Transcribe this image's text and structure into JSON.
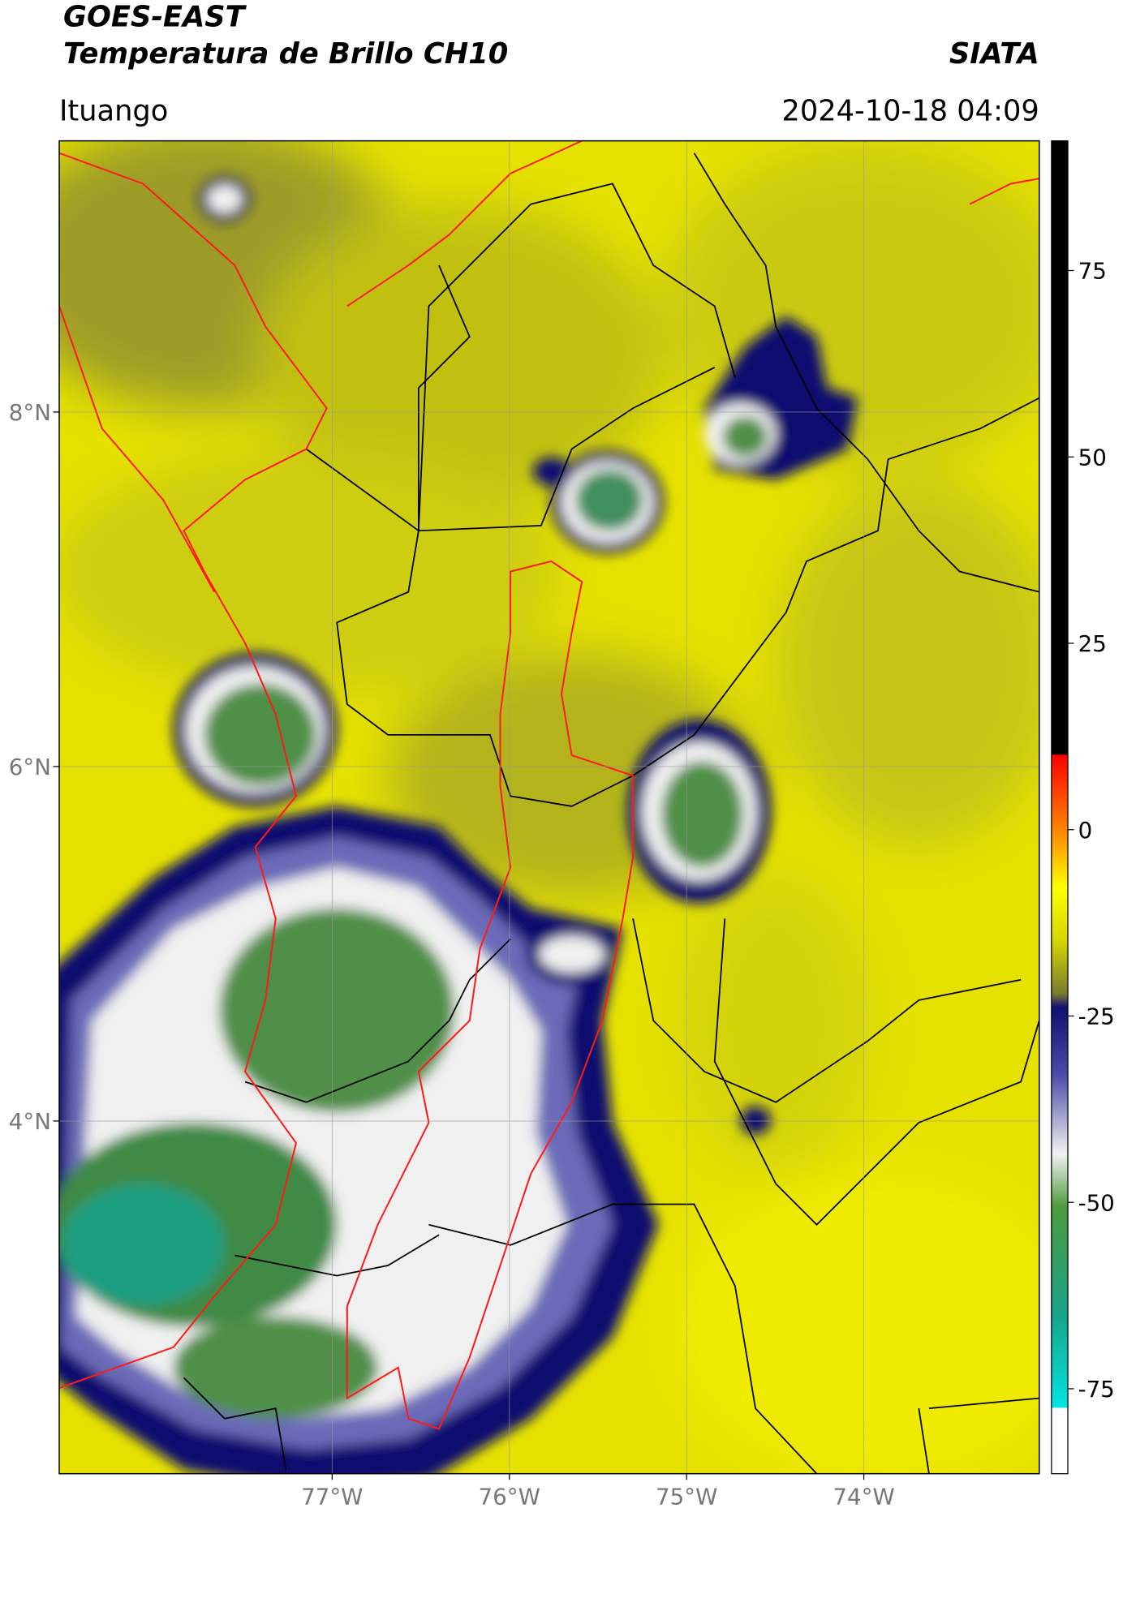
{
  "header": {
    "title": "GOES-EAST",
    "subtitle": "Temperatura de Brillo CH10",
    "source": "SIATA",
    "location": "Ituango",
    "timestamp": "2024-10-18 04:09"
  },
  "map": {
    "xlim": [
      -78.54,
      -73.01
    ],
    "ylim": [
      2.01,
      9.53
    ],
    "xticks": [
      {
        "value": -77,
        "label": "77°W"
      },
      {
        "value": -76,
        "label": "76°W"
      },
      {
        "value": -75,
        "label": "75°W"
      },
      {
        "value": -74,
        "label": "74°W"
      }
    ],
    "yticks": [
      {
        "value": 8,
        "label": "8°N"
      },
      {
        "value": 6,
        "label": "6°N"
      },
      {
        "value": 4,
        "label": "4°N"
      }
    ],
    "grid": true
  },
  "colorbar": {
    "lim": [
      -86.4,
      92.4
    ],
    "ticks": [
      75,
      50,
      25,
      0,
      -25,
      -50,
      -75
    ]
  }
}
